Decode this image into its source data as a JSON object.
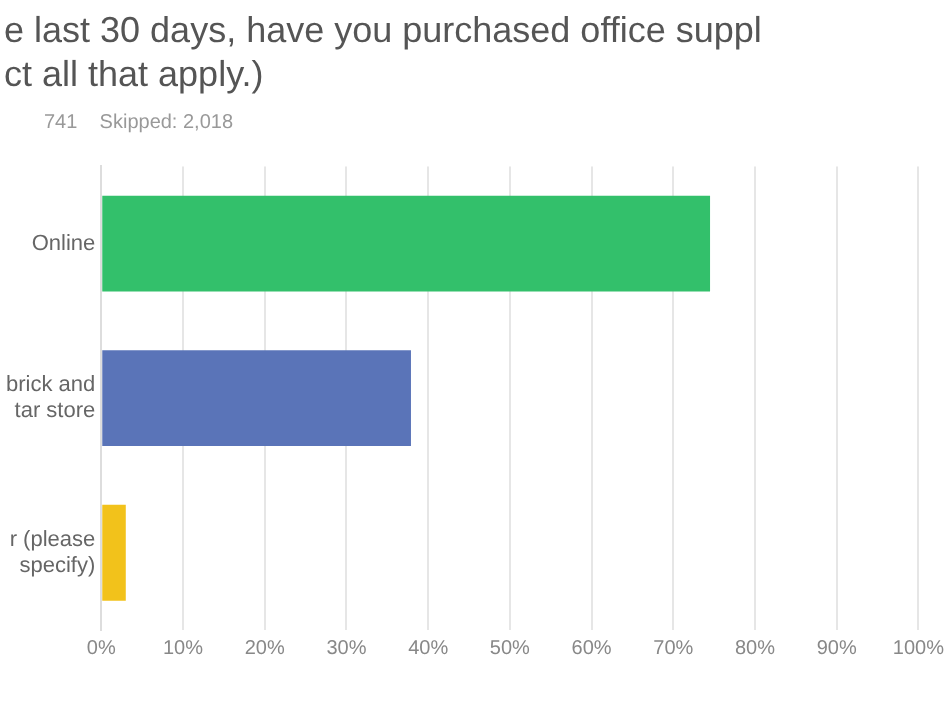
{
  "chart_data": {
    "type": "bar",
    "orientation": "horizontal",
    "title": "e last 30 days, have you purchased office suppl\nct all that apply.)",
    "subtitle": "741    Skipped: 2,018",
    "categories": [
      "Online",
      "brick and\ntar store",
      "r (please\nspecify)"
    ],
    "values": [
      74.5,
      37.9,
      3.0
    ],
    "colors": [
      "#33c06b",
      "#5a74b8",
      "#f2c21b"
    ],
    "xlim": [
      0,
      100
    ],
    "xticks": [
      {
        "value": 0,
        "label": "0%"
      },
      {
        "value": 10,
        "label": "10%"
      },
      {
        "value": 20,
        "label": "20%"
      },
      {
        "value": 30,
        "label": "30%"
      },
      {
        "value": 40,
        "label": "40%"
      },
      {
        "value": 50,
        "label": "50%"
      },
      {
        "value": 60,
        "label": "60%"
      },
      {
        "value": 70,
        "label": "70%"
      },
      {
        "value": 80,
        "label": "80%"
      },
      {
        "value": 90,
        "label": "90%"
      },
      {
        "value": 100,
        "label": "100%"
      }
    ],
    "grid": "x",
    "legend": false
  }
}
